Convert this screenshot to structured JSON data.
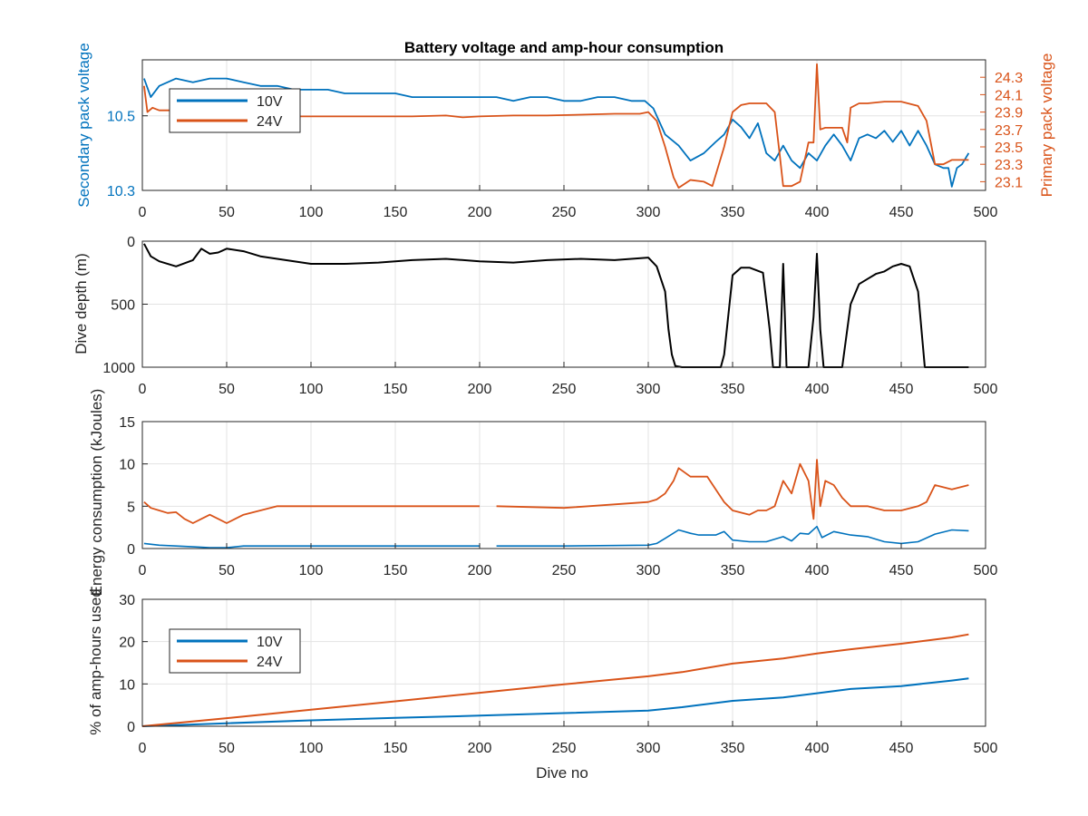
{
  "colors": {
    "v10": "#0072BD",
    "v24": "#D95319",
    "depth": "#000000",
    "axis": "#262626"
  },
  "chart_data": [
    {
      "type": "line",
      "title": "Battery voltage and amp-hour consumption",
      "xlabel": "",
      "xlim": [
        0,
        500
      ],
      "xticks": [
        0,
        50,
        100,
        150,
        200,
        250,
        300,
        350,
        400,
        450,
        500
      ],
      "grid": true,
      "legend_position": "top-left",
      "yleft": {
        "label": "Secondary pack voltage",
        "ylim": [
          10.3,
          10.65
        ],
        "ticks": [
          10.3,
          10.5
        ],
        "tick_labels": [
          "10.3",
          "10.5"
        ]
      },
      "yright": {
        "label": "Primary pack voltage",
        "ylim": [
          23.0,
          24.5
        ],
        "ticks": [
          23.1,
          23.3,
          23.5,
          23.7,
          23.9,
          24.1,
          24.3
        ],
        "tick_labels": [
          "23.1",
          "23.3",
          "23.5",
          "23.7",
          "23.9",
          "24.1",
          "24.3"
        ]
      },
      "series": [
        {
          "name": "10V",
          "axis": "left",
          "x": [
            1,
            5,
            10,
            20,
            30,
            40,
            50,
            60,
            70,
            80,
            90,
            100,
            110,
            120,
            130,
            140,
            150,
            160,
            170,
            180,
            190,
            200,
            210,
            220,
            230,
            240,
            250,
            260,
            270,
            280,
            290,
            298,
            303,
            310,
            318,
            325,
            333,
            340,
            345,
            350,
            355,
            360,
            365,
            370,
            375,
            380,
            385,
            390,
            395,
            400,
            405,
            410,
            415,
            420,
            425,
            430,
            435,
            440,
            445,
            450,
            455,
            460,
            465,
            470,
            475,
            478,
            480,
            483,
            486,
            490
          ],
          "y": [
            10.6,
            10.55,
            10.58,
            10.6,
            10.59,
            10.6,
            10.6,
            10.59,
            10.58,
            10.58,
            10.57,
            10.57,
            10.57,
            10.56,
            10.56,
            10.56,
            10.56,
            10.55,
            10.55,
            10.55,
            10.55,
            10.55,
            10.55,
            10.54,
            10.55,
            10.55,
            10.54,
            10.54,
            10.55,
            10.55,
            10.54,
            10.54,
            10.52,
            10.45,
            10.42,
            10.38,
            10.4,
            10.43,
            10.45,
            10.49,
            10.47,
            10.44,
            10.48,
            10.4,
            10.38,
            10.42,
            10.38,
            10.36,
            10.4,
            10.38,
            10.42,
            10.45,
            10.42,
            10.38,
            10.44,
            10.45,
            10.44,
            10.46,
            10.43,
            10.46,
            10.42,
            10.46,
            10.42,
            10.37,
            10.36,
            10.36,
            10.31,
            10.36,
            10.37,
            10.4
          ]
        },
        {
          "name": "24V",
          "axis": "right",
          "x": [
            1,
            3,
            6,
            10,
            20,
            30,
            40,
            50,
            60,
            70,
            80,
            90,
            100,
            120,
            140,
            160,
            180,
            190,
            200,
            220,
            240,
            260,
            280,
            290,
            295,
            300,
            305,
            310,
            315,
            318,
            325,
            333,
            338,
            345,
            350,
            355,
            360,
            370,
            375,
            378,
            380,
            385,
            390,
            395,
            398,
            400,
            402,
            405,
            415,
            418,
            420,
            425,
            430,
            440,
            450,
            460,
            465,
            470,
            475,
            480,
            485,
            490
          ],
          "y": [
            24.2,
            23.9,
            23.95,
            23.92,
            23.92,
            23.9,
            23.88,
            23.86,
            23.87,
            23.86,
            23.86,
            23.85,
            23.85,
            23.85,
            23.85,
            23.85,
            23.86,
            23.84,
            23.85,
            23.86,
            23.86,
            23.87,
            23.88,
            23.88,
            23.88,
            23.9,
            23.8,
            23.5,
            23.15,
            23.03,
            23.12,
            23.1,
            23.05,
            23.5,
            23.9,
            23.98,
            24.0,
            24.0,
            23.9,
            23.4,
            23.05,
            23.05,
            23.1,
            23.55,
            23.55,
            24.45,
            23.7,
            23.72,
            23.72,
            23.55,
            23.95,
            24.0,
            24.0,
            24.02,
            24.02,
            23.97,
            23.8,
            23.3,
            23.3,
            23.35,
            23.35,
            23.35
          ]
        }
      ]
    },
    {
      "type": "line",
      "xlabel": "",
      "ylabel": "Dive depth (m)",
      "xlim": [
        0,
        500
      ],
      "ylim": [
        0,
        1000
      ],
      "yreversed": true,
      "xticks": [
        0,
        50,
        100,
        150,
        200,
        250,
        300,
        350,
        400,
        450,
        500
      ],
      "yticks": [
        0,
        500,
        1000
      ],
      "grid": true,
      "series": [
        {
          "x": [
            1,
            5,
            10,
            20,
            30,
            35,
            40,
            45,
            50,
            60,
            70,
            80,
            90,
            100,
            120,
            140,
            160,
            180,
            200,
            220,
            240,
            260,
            280,
            300,
            305,
            310,
            312,
            314,
            316,
            320,
            330,
            340,
            343,
            345,
            350,
            355,
            360,
            368,
            372,
            374,
            376,
            378,
            380,
            382,
            383,
            385,
            395,
            398,
            400,
            402,
            404,
            405,
            410,
            414,
            415,
            420,
            425,
            430,
            435,
            440,
            445,
            450,
            455,
            460,
            462,
            464,
            470,
            480,
            490
          ],
          "y": [
            20,
            120,
            160,
            200,
            150,
            60,
            100,
            90,
            60,
            80,
            120,
            140,
            160,
            180,
            180,
            170,
            150,
            140,
            160,
            170,
            150,
            140,
            150,
            130,
            200,
            400,
            700,
            900,
            990,
            1000,
            1000,
            1000,
            1000,
            900,
            270,
            210,
            210,
            250,
            700,
            1000,
            1000,
            1000,
            180,
            1000,
            1000,
            1000,
            1000,
            600,
            100,
            700,
            1000,
            1000,
            1000,
            1000,
            1000,
            500,
            340,
            300,
            260,
            240,
            200,
            180,
            200,
            400,
            700,
            1000,
            1000,
            1000,
            1000
          ]
        }
      ]
    },
    {
      "type": "line",
      "xlabel": "",
      "ylabel": "Energy consumption (kJoules)",
      "xlim": [
        0,
        500
      ],
      "ylim": [
        0,
        15
      ],
      "xticks": [
        0,
        50,
        100,
        150,
        200,
        250,
        300,
        350,
        400,
        450,
        500
      ],
      "yticks": [
        0,
        5,
        10,
        15
      ],
      "grid": true,
      "series": [
        {
          "name": "10V",
          "x": [
            1,
            10,
            20,
            30,
            40,
            50,
            60,
            80,
            100,
            150,
            200,
            205,
            210,
            250,
            300,
            305,
            310,
            318,
            325,
            330,
            340,
            345,
            350,
            360,
            370,
            380,
            385,
            390,
            395,
            400,
            403,
            410,
            420,
            430,
            440,
            450,
            460,
            470,
            480,
            490
          ],
          "y": [
            0.6,
            0.4,
            0.3,
            0.2,
            0.1,
            0.1,
            0.3,
            0.3,
            0.3,
            0.3,
            0.3,
            null,
            0.3,
            0.3,
            0.4,
            0.6,
            1.2,
            2.2,
            1.8,
            1.6,
            1.6,
            2.0,
            1.0,
            0.8,
            0.8,
            1.4,
            0.9,
            1.8,
            1.7,
            2.6,
            1.3,
            2.0,
            1.6,
            1.4,
            0.8,
            0.6,
            0.8,
            1.7,
            2.2,
            2.1
          ]
        },
        {
          "name": "24V",
          "x": [
            1,
            5,
            10,
            15,
            20,
            25,
            30,
            35,
            40,
            45,
            50,
            55,
            60,
            70,
            80,
            100,
            150,
            200,
            205,
            210,
            250,
            300,
            305,
            310,
            315,
            318,
            325,
            335,
            340,
            345,
            350,
            360,
            365,
            370,
            375,
            380,
            385,
            390,
            395,
            398,
            400,
            402,
            405,
            410,
            415,
            420,
            430,
            440,
            450,
            460,
            465,
            470,
            480,
            490
          ],
          "y": [
            5.5,
            4.8,
            4.5,
            4.2,
            4.3,
            3.5,
            3.0,
            3.5,
            4.0,
            3.5,
            3.0,
            3.5,
            4.0,
            4.5,
            5.0,
            5.0,
            5.0,
            5.0,
            null,
            5.0,
            4.8,
            5.5,
            5.8,
            6.5,
            8.0,
            9.5,
            8.5,
            8.5,
            7.0,
            5.5,
            4.5,
            4.0,
            4.5,
            4.5,
            5.0,
            8.0,
            6.5,
            10.0,
            8.0,
            3.5,
            10.5,
            5.0,
            8.0,
            7.5,
            6.0,
            5.0,
            5.0,
            4.5,
            4.5,
            5.0,
            5.5,
            7.5,
            7.0,
            7.5
          ]
        }
      ]
    },
    {
      "type": "line",
      "xlabel": "Dive no",
      "ylabel": "% of amp-hours used",
      "xlim": [
        0,
        500
      ],
      "ylim": [
        0,
        30
      ],
      "xticks": [
        0,
        50,
        100,
        150,
        200,
        250,
        300,
        350,
        400,
        450,
        500
      ],
      "yticks": [
        0,
        10,
        20,
        30
      ],
      "grid": true,
      "legend_position": "top-left",
      "series": [
        {
          "name": "10V",
          "x": [
            0,
            50,
            100,
            150,
            200,
            250,
            300,
            320,
            350,
            380,
            400,
            420,
            450,
            480,
            490
          ],
          "y": [
            0,
            0.7,
            1.4,
            2.0,
            2.5,
            3.1,
            3.7,
            4.5,
            6.0,
            6.8,
            7.8,
            8.8,
            9.5,
            10.8,
            11.3
          ]
        },
        {
          "name": "24V",
          "x": [
            0,
            50,
            100,
            150,
            200,
            250,
            300,
            320,
            350,
            380,
            400,
            420,
            450,
            480,
            490
          ],
          "y": [
            0,
            1.9,
            3.9,
            5.9,
            7.9,
            9.9,
            11.8,
            12.8,
            14.8,
            16.0,
            17.2,
            18.2,
            19.5,
            21.0,
            21.7
          ]
        }
      ]
    }
  ]
}
